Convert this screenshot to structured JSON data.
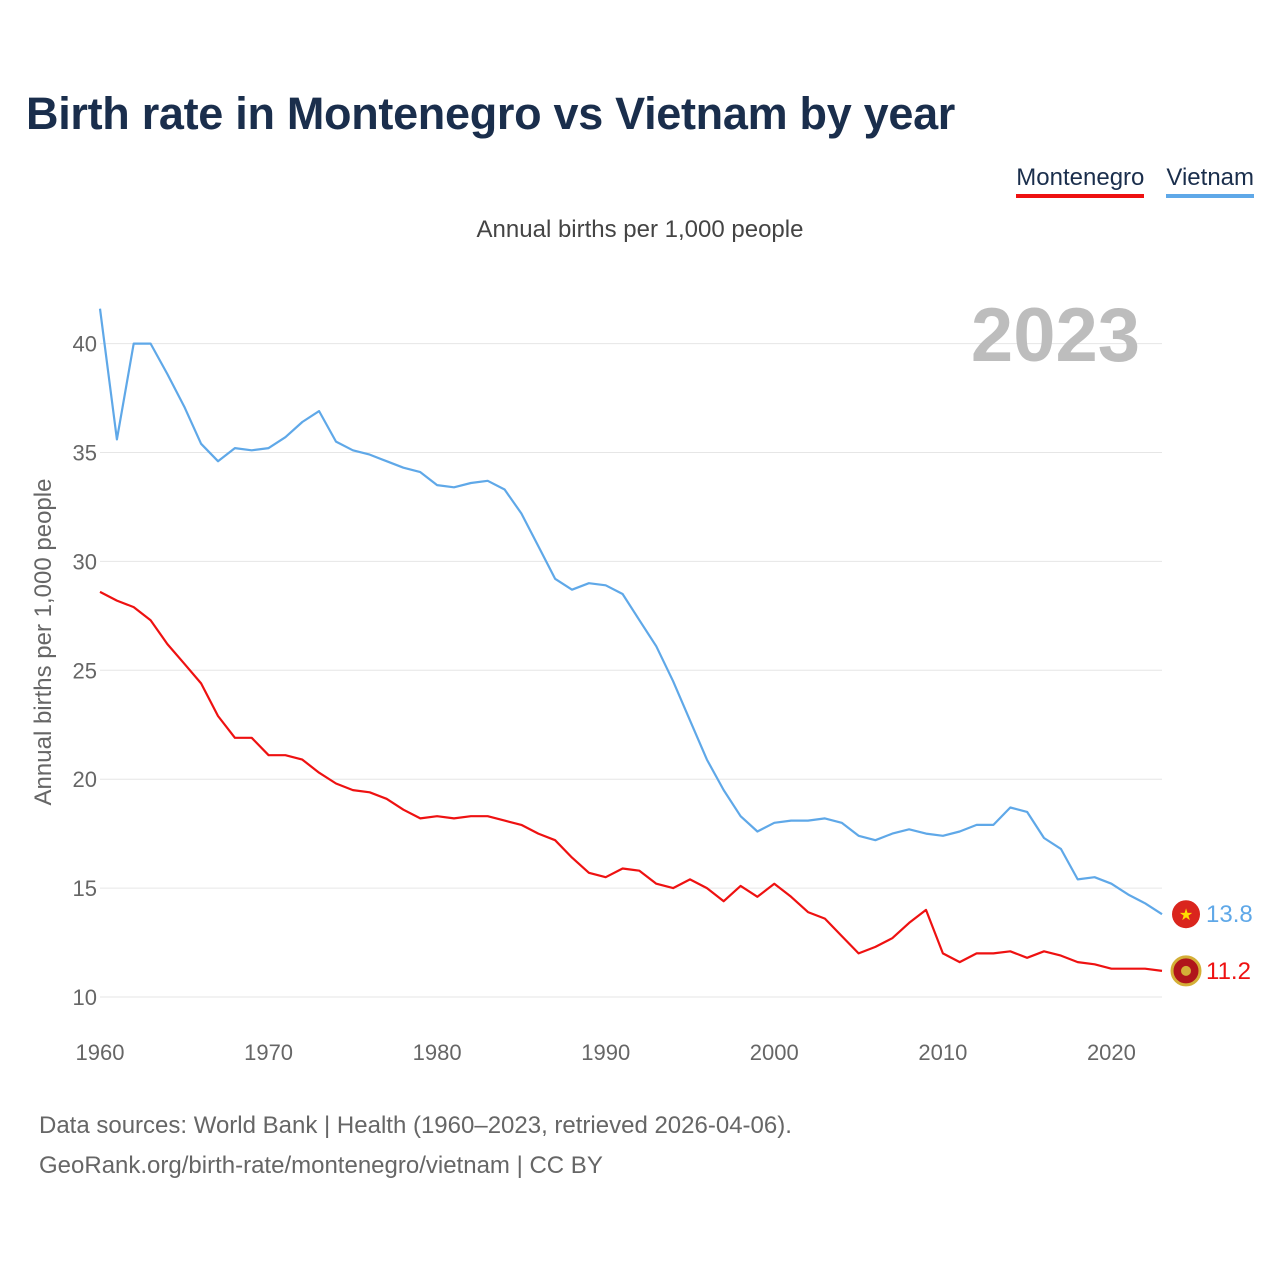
{
  "title": "Birth rate in Montenegro vs Vietnam by year",
  "legend": [
    {
      "label": "Montenegro",
      "color": "#ee1111"
    },
    {
      "label": "Vietnam",
      "color": "#5fa8e8"
    }
  ],
  "subtitle": "Annual births per 1,000 people",
  "footer": {
    "line1": "Data sources: World Bank | Health (1960–2023, retrieved 2026-04-06).",
    "line2": "GeoRank.org/birth-rate/montenegro/vietnam | CC BY"
  },
  "chart_data": {
    "type": "line",
    "title": "Birth rate in Montenegro vs Vietnam by year",
    "ylabel": "Annual births per 1,000 people",
    "xlabel": "",
    "year_label": "2023",
    "xlim": [
      1960,
      2023
    ],
    "ylim": [
      10,
      42
    ],
    "xticks": [
      1960,
      1970,
      1980,
      1990,
      2000,
      2010,
      2020
    ],
    "yticks": [
      10,
      15,
      20,
      25,
      30,
      35,
      40
    ],
    "grid": true,
    "x": [
      1960,
      1961,
      1962,
      1963,
      1964,
      1965,
      1966,
      1967,
      1968,
      1969,
      1970,
      1971,
      1972,
      1973,
      1974,
      1975,
      1976,
      1977,
      1978,
      1979,
      1980,
      1981,
      1982,
      1983,
      1984,
      1985,
      1986,
      1987,
      1988,
      1989,
      1990,
      1991,
      1992,
      1993,
      1994,
      1995,
      1996,
      1997,
      1998,
      1999,
      2000,
      2001,
      2002,
      2003,
      2004,
      2005,
      2006,
      2007,
      2008,
      2009,
      2010,
      2011,
      2012,
      2013,
      2014,
      2015,
      2016,
      2017,
      2018,
      2019,
      2020,
      2021,
      2022,
      2023
    ],
    "series": [
      {
        "name": "Montenegro",
        "color": "#ee1111",
        "end_label": "11.2",
        "flag_icon": "montenegro-flag-icon",
        "values": [
          28.6,
          28.2,
          27.9,
          27.3,
          26.2,
          25.3,
          24.4,
          22.9,
          21.9,
          21.9,
          21.1,
          21.1,
          20.9,
          20.3,
          19.8,
          19.5,
          19.4,
          19.1,
          18.6,
          18.2,
          18.3,
          18.2,
          18.3,
          18.3,
          18.1,
          17.9,
          17.5,
          17.2,
          16.4,
          15.7,
          15.5,
          15.9,
          15.8,
          15.2,
          15.0,
          15.4,
          15.0,
          14.4,
          15.1,
          14.6,
          15.2,
          14.6,
          13.9,
          13.6,
          12.8,
          12.0,
          12.3,
          12.7,
          13.4,
          14.0,
          12.0,
          11.6,
          12.0,
          12.0,
          12.1,
          11.8,
          12.1,
          11.9,
          11.6,
          11.5,
          11.3,
          11.3,
          11.3,
          11.2
        ]
      },
      {
        "name": "Vietnam",
        "color": "#5fa8e8",
        "end_label": "13.8",
        "flag_icon": "vietnam-flag-icon",
        "values": [
          41.6,
          35.6,
          40.0,
          40.0,
          38.6,
          37.1,
          35.4,
          34.6,
          35.2,
          35.1,
          35.2,
          35.7,
          36.4,
          36.9,
          35.5,
          35.1,
          34.9,
          34.6,
          34.3,
          34.1,
          33.5,
          33.4,
          33.6,
          33.7,
          33.3,
          32.2,
          30.7,
          29.2,
          28.7,
          29.0,
          28.9,
          28.5,
          27.3,
          26.1,
          24.5,
          22.7,
          20.9,
          19.5,
          18.3,
          17.6,
          18.0,
          18.1,
          18.1,
          18.2,
          18.0,
          17.4,
          17.2,
          17.5,
          17.7,
          17.5,
          17.4,
          17.6,
          17.9,
          17.9,
          18.7,
          18.5,
          17.3,
          16.8,
          15.4,
          15.5,
          15.2,
          14.7,
          14.3,
          13.8
        ]
      }
    ]
  }
}
